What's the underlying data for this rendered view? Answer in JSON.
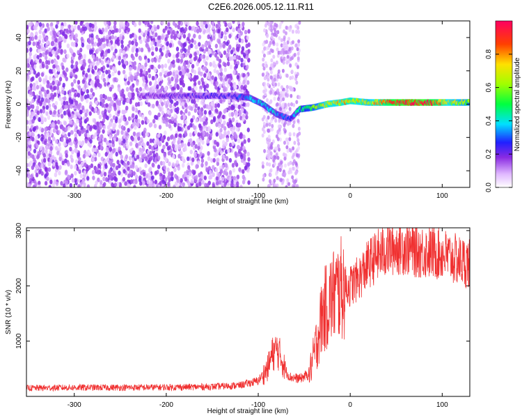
{
  "title": "C2E6.2026.005.12.11.R11",
  "chart_data": [
    {
      "type": "heatmap",
      "title": "C2E6.2026.005.12.11.R11",
      "xlabel": "Height of straight line (km)",
      "ylabel": "Frequency (Hz)",
      "xlim": [
        -352,
        130
      ],
      "ylim": [
        -50,
        50
      ],
      "xticks": [
        -300,
        -200,
        -100,
        0,
        100
      ],
      "yticks": [
        -40,
        -20,
        0,
        20,
        40
      ],
      "colorbar": {
        "label": "Normalized spectral amplitude",
        "range": [
          0,
          1
        ],
        "ticks": [
          0.0,
          0.2,
          0.4,
          0.6,
          0.8
        ],
        "tick_labels": [
          "0.0",
          "0.2",
          "0.4",
          "0.6",
          "0.8"
        ]
      },
      "signal_track": {
        "x": [
          -230,
          -200,
          -160,
          -130,
          -110,
          -95,
          -80,
          -65,
          -55,
          -40,
          -25,
          -10,
          0,
          20,
          50,
          80,
          95,
          105,
          130
        ],
        "freq_hz": [
          5,
          5,
          5,
          5,
          4,
          0,
          -6,
          -9,
          -3,
          -2,
          0,
          1,
          2,
          1,
          1,
          1,
          1,
          1,
          1
        ],
        "amplitude": [
          0.18,
          0.2,
          0.22,
          0.22,
          0.35,
          0.4,
          0.35,
          0.25,
          0.45,
          0.55,
          0.7,
          0.72,
          0.75,
          0.65,
          0.95,
          0.98,
          0.85,
          0.7,
          0.6
        ]
      }
    },
    {
      "type": "line",
      "xlabel": "Height of straight line (km)",
      "ylabel": "SNR (10 * v/v)",
      "xlim": [
        -352,
        130
      ],
      "ylim": [
        0,
        3050
      ],
      "xticks": [
        -300,
        -200,
        -100,
        0,
        100
      ],
      "yticks": [
        1000,
        2000,
        3000
      ],
      "series": [
        {
          "name": "SNR",
          "color": "#f03030",
          "x": [
            -352,
            -300,
            -250,
            -200,
            -150,
            -120,
            -100,
            -90,
            -85,
            -80,
            -75,
            -70,
            -65,
            -55,
            -45,
            -40,
            -35,
            -30,
            -20,
            -10,
            0,
            10,
            20,
            30,
            40,
            50,
            60,
            70,
            80,
            90,
            100,
            110,
            120,
            130
          ],
          "y": [
            150,
            160,
            160,
            165,
            175,
            200,
            280,
            500,
            750,
            850,
            700,
            450,
            350,
            320,
            400,
            700,
            1100,
            1500,
            1800,
            1950,
            2000,
            2150,
            2400,
            2550,
            2650,
            2700,
            2700,
            2650,
            2620,
            2600,
            2580,
            2500,
            2450,
            2400
          ]
        }
      ]
    }
  ]
}
